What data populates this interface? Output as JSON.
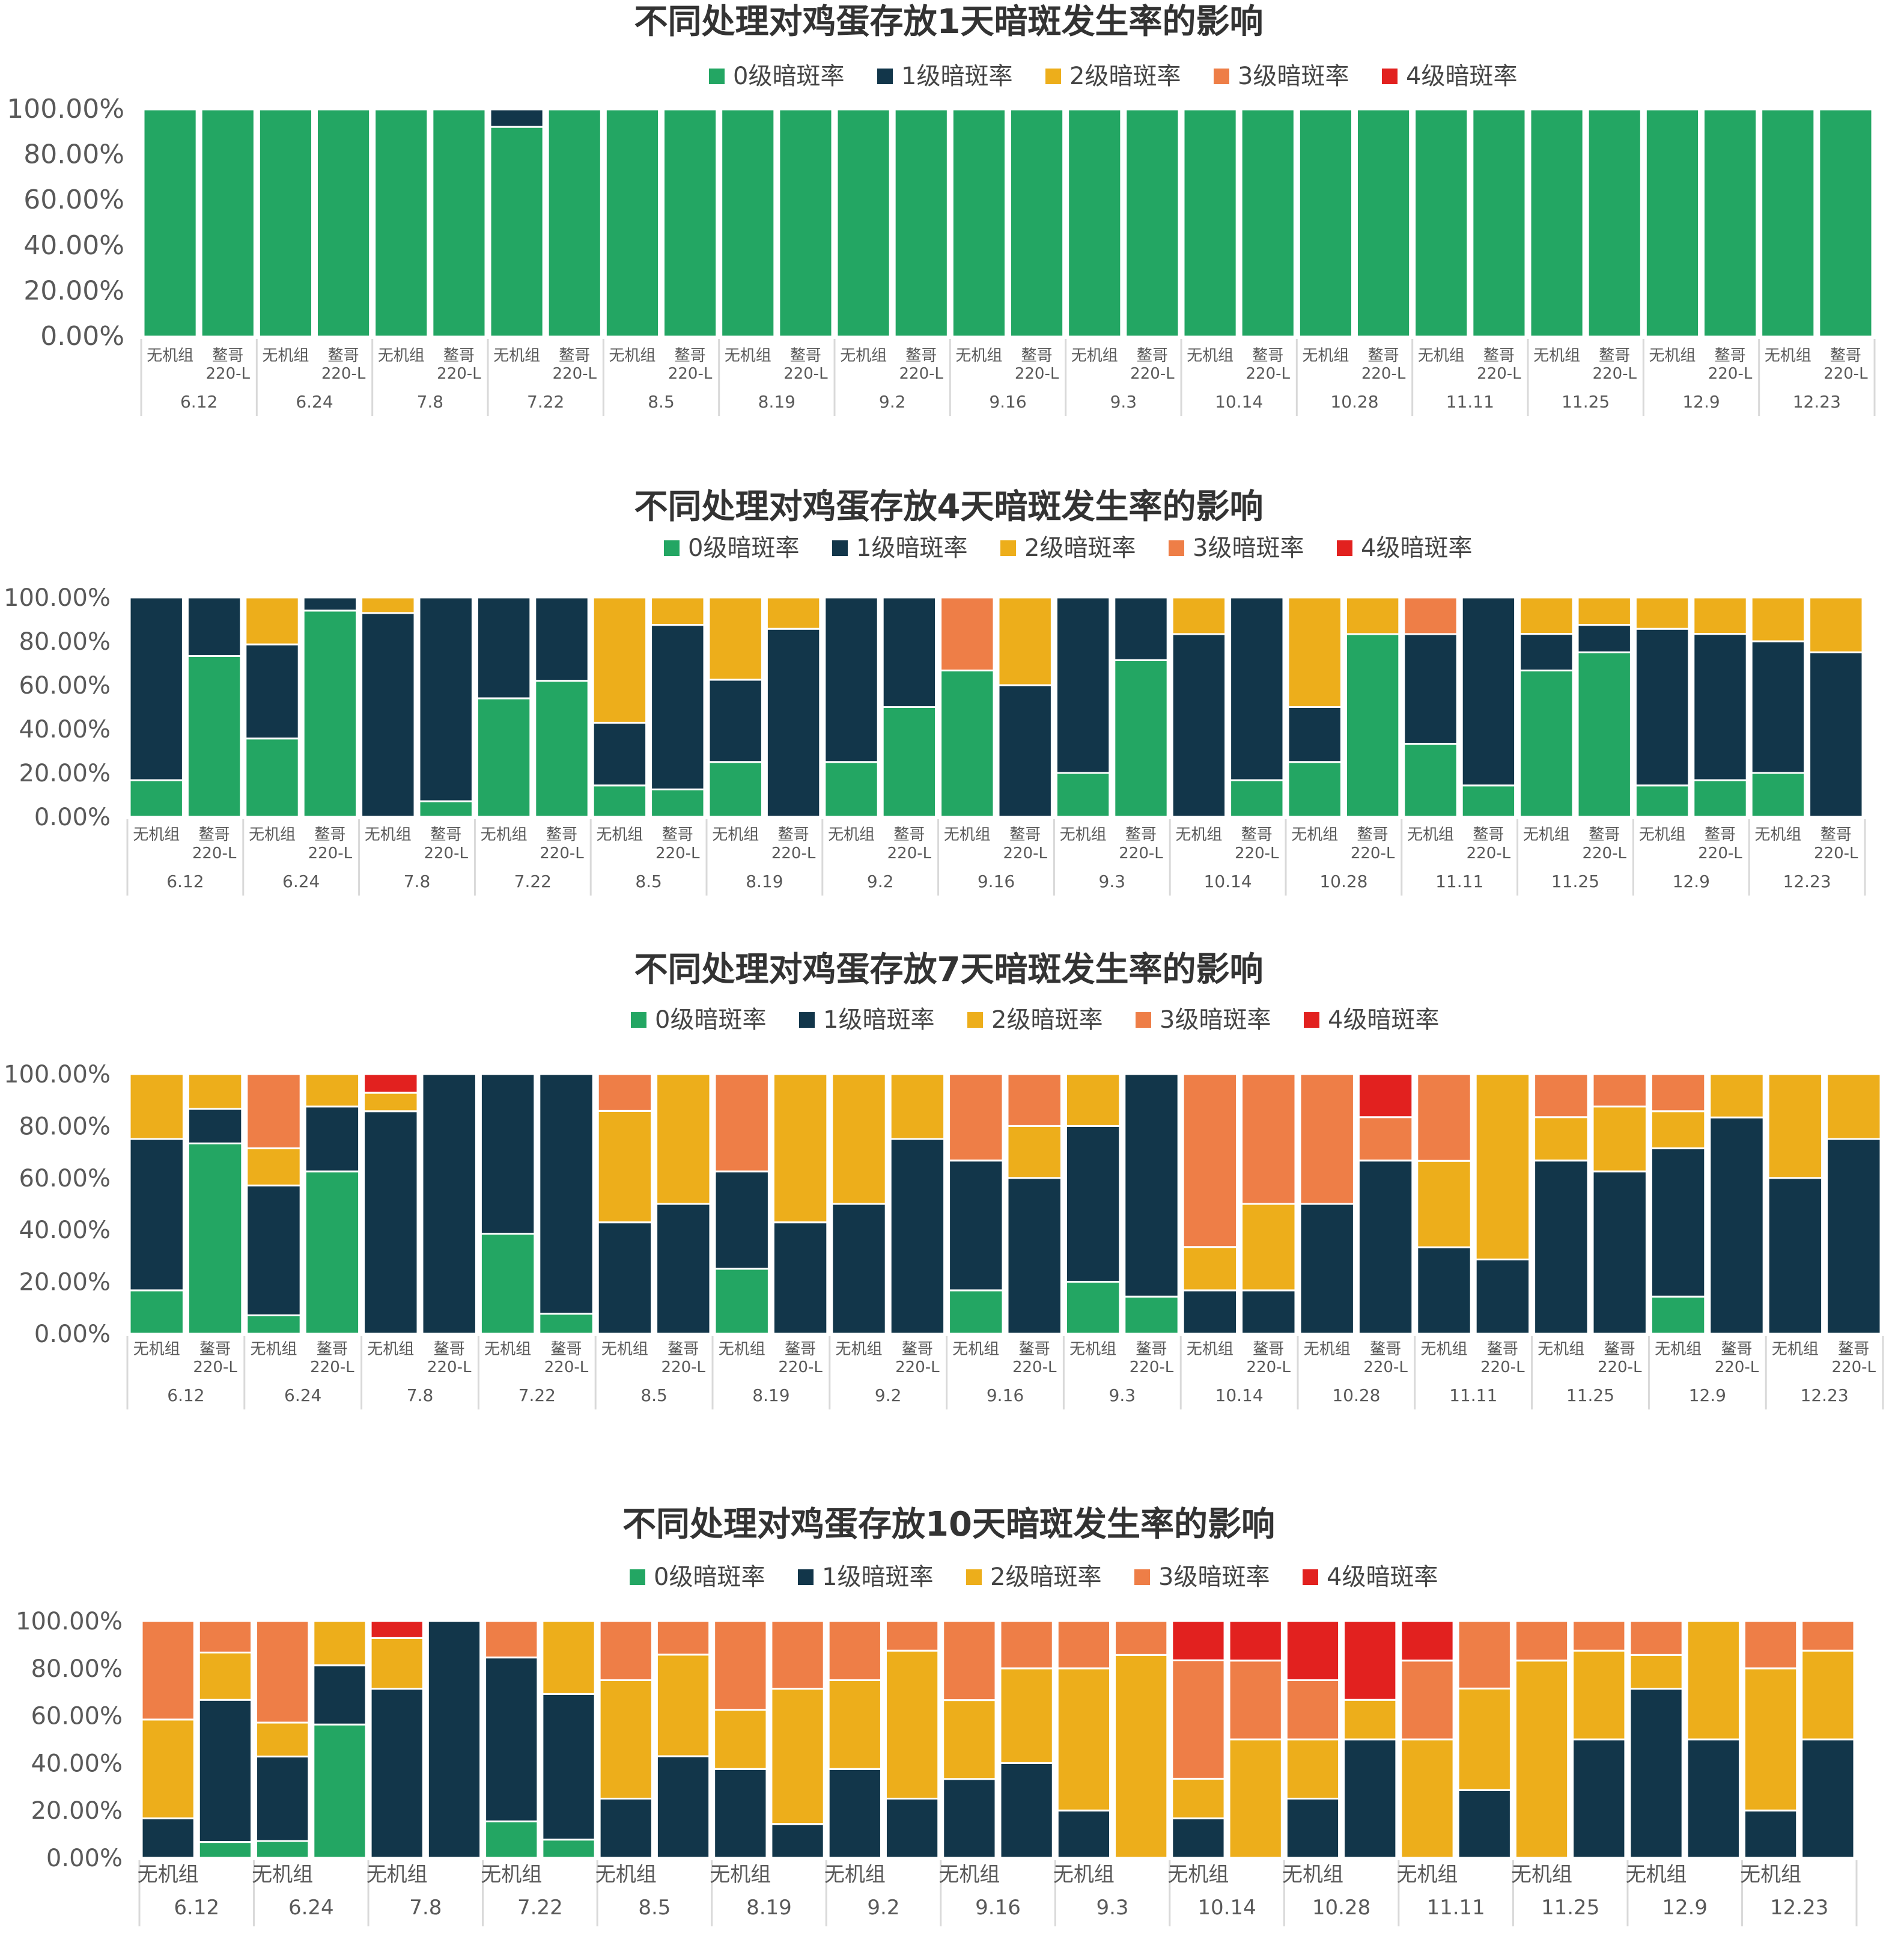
{
  "colors": {
    "level0": "#23A663",
    "level1": "#12364A",
    "level2": "#EDAE1B",
    "level3": "#EE7E47",
    "level4": "#E2211F",
    "grid_line": "#D9D9D9",
    "text": "#595959"
  },
  "legend": [
    "0级暗斑率",
    "1级暗斑率",
    "2级暗斑率",
    "3级暗斑率",
    "4级暗斑率"
  ],
  "dates": [
    "6.12",
    "6.24",
    "7.8",
    "7.22",
    "8.5",
    "8.19",
    "9.2",
    "9.16",
    "9.3",
    "10.14",
    "10.28",
    "11.11",
    "11.25",
    "12.9",
    "12.23"
  ],
  "groups": [
    "无机组",
    "鳌哥\n220-L"
  ],
  "chart_data": [
    {
      "type": "bar",
      "stacked": true,
      "title": "不同处理对鸡蛋存放1天暗斑发生率的影响",
      "ylim": [
        0,
        100
      ],
      "y_ticks": [
        "0.00%",
        "20.00%",
        "40.00%",
        "60.00%",
        "80.00%",
        "100.00%"
      ],
      "show_second_group_label": true,
      "bars": [
        [
          100,
          0,
          0,
          0,
          0
        ],
        [
          100,
          0,
          0,
          0,
          0
        ],
        [
          100,
          0,
          0,
          0,
          0
        ],
        [
          100,
          0,
          0,
          0,
          0
        ],
        [
          100,
          0,
          0,
          0,
          0
        ],
        [
          100,
          0,
          0,
          0,
          0
        ],
        [
          92.3,
          7.7,
          0,
          0,
          0
        ],
        [
          100,
          0,
          0,
          0,
          0
        ],
        [
          100,
          0,
          0,
          0,
          0
        ],
        [
          100,
          0,
          0,
          0,
          0
        ],
        [
          100,
          0,
          0,
          0,
          0
        ],
        [
          100,
          0,
          0,
          0,
          0
        ],
        [
          100,
          0,
          0,
          0,
          0
        ],
        [
          100,
          0,
          0,
          0,
          0
        ],
        [
          100,
          0,
          0,
          0,
          0
        ],
        [
          100,
          0,
          0,
          0,
          0
        ],
        [
          100,
          0,
          0,
          0,
          0
        ],
        [
          100,
          0,
          0,
          0,
          0
        ],
        [
          100,
          0,
          0,
          0,
          0
        ],
        [
          100,
          0,
          0,
          0,
          0
        ],
        [
          100,
          0,
          0,
          0,
          0
        ],
        [
          100,
          0,
          0,
          0,
          0
        ],
        [
          100,
          0,
          0,
          0,
          0
        ],
        [
          100,
          0,
          0,
          0,
          0
        ],
        [
          100,
          0,
          0,
          0,
          0
        ],
        [
          100,
          0,
          0,
          0,
          0
        ],
        [
          100,
          0,
          0,
          0,
          0
        ],
        [
          100,
          0,
          0,
          0,
          0
        ],
        [
          100,
          0,
          0,
          0,
          0
        ],
        [
          100,
          0,
          0,
          0,
          0
        ]
      ]
    },
    {
      "type": "bar",
      "stacked": true,
      "title": "不同处理对鸡蛋存放4天暗斑发生率的影响",
      "ylim": [
        0,
        100
      ],
      "y_ticks": [
        "0.00%",
        "20.00%",
        "40.00%",
        "60.00%",
        "80.00%",
        "100.00%"
      ],
      "show_second_group_label": true,
      "bars": [
        [
          16.7,
          83.3,
          0,
          0,
          0
        ],
        [
          73.3,
          26.7,
          0,
          0,
          0
        ],
        [
          35.7,
          42.9,
          21.4,
          0,
          0
        ],
        [
          94,
          6,
          0,
          0,
          0
        ],
        [
          0,
          92.9,
          7.1,
          0,
          0
        ],
        [
          7.1,
          92.9,
          0,
          0,
          0
        ],
        [
          54,
          46,
          0,
          0,
          0
        ],
        [
          62,
          38,
          0,
          0,
          0
        ],
        [
          14.3,
          28.6,
          57.1,
          0,
          0
        ],
        [
          12.5,
          75,
          12.5,
          0,
          0
        ],
        [
          25,
          37.5,
          37.5,
          0,
          0
        ],
        [
          0,
          85.7,
          14.3,
          0,
          0
        ],
        [
          25,
          75,
          0,
          0,
          0
        ],
        [
          50,
          50,
          0,
          0,
          0
        ],
        [
          66.7,
          0,
          0,
          33.3,
          0
        ],
        [
          0,
          60,
          40,
          0,
          0
        ],
        [
          20,
          80,
          0,
          0,
          0
        ],
        [
          71.4,
          28.6,
          0,
          0,
          0
        ],
        [
          0,
          83.3,
          16.7,
          0,
          0
        ],
        [
          16.7,
          83.3,
          0,
          0,
          0
        ],
        [
          25,
          25,
          50,
          0,
          0
        ],
        [
          83.3,
          0,
          16.7,
          0,
          0
        ],
        [
          33.3,
          50,
          0,
          16.7,
          0
        ],
        [
          14.3,
          85.7,
          0,
          0,
          0
        ],
        [
          66.7,
          16.7,
          16.6,
          0,
          0
        ],
        [
          75,
          12.5,
          12.5,
          0,
          0
        ],
        [
          14.3,
          71.4,
          14.3,
          0,
          0
        ],
        [
          16.7,
          66.7,
          16.6,
          0,
          0
        ],
        [
          20,
          60,
          20,
          0,
          0
        ],
        [
          0,
          75,
          25,
          0,
          0
        ]
      ]
    },
    {
      "type": "bar",
      "stacked": true,
      "title": "不同处理对鸡蛋存放7天暗斑发生率的影响",
      "ylim": [
        0,
        100
      ],
      "y_ticks": [
        "0.00%",
        "20.00%",
        "40.00%",
        "60.00%",
        "80.00%",
        "100.00%"
      ],
      "show_second_group_label": true,
      "bars": [
        [
          16.7,
          58.3,
          25,
          0,
          0
        ],
        [
          73.3,
          13.3,
          13.4,
          0,
          0
        ],
        [
          7.1,
          50,
          14.3,
          28.6,
          0
        ],
        [
          62.5,
          25,
          12.5,
          0,
          0
        ],
        [
          0,
          85.7,
          7.1,
          0,
          7.2
        ],
        [
          0,
          100,
          0,
          0,
          0
        ],
        [
          38.5,
          61.5,
          0,
          0,
          0
        ],
        [
          7.7,
          92.3,
          0,
          0,
          0
        ],
        [
          0,
          42.9,
          42.9,
          14.2,
          0
        ],
        [
          0,
          50,
          50,
          0,
          0
        ],
        [
          25,
          37.5,
          0,
          37.5,
          0
        ],
        [
          0,
          42.9,
          57.1,
          0,
          0
        ],
        [
          0,
          50,
          50,
          0,
          0
        ],
        [
          0,
          75,
          25,
          0,
          0
        ],
        [
          16.7,
          50,
          0,
          33.3,
          0
        ],
        [
          0,
          60,
          20,
          20,
          0
        ],
        [
          20,
          60,
          20,
          0,
          0
        ],
        [
          14.3,
          85.7,
          0,
          0,
          0
        ],
        [
          0,
          16.7,
          16.7,
          66.6,
          0
        ],
        [
          0,
          16.7,
          33.3,
          50,
          0
        ],
        [
          0,
          50,
          0,
          50,
          0
        ],
        [
          0,
          66.7,
          0,
          16.7,
          16.6
        ],
        [
          0,
          33.3,
          33.3,
          33.4,
          0
        ],
        [
          0,
          28.6,
          71.4,
          0,
          0
        ],
        [
          0,
          66.7,
          16.7,
          16.6,
          0
        ],
        [
          0,
          62.5,
          25,
          12.5,
          0
        ],
        [
          14.3,
          57.1,
          14.3,
          14.3,
          0
        ],
        [
          0,
          83.3,
          16.7,
          0,
          0
        ],
        [
          0,
          60,
          40,
          0,
          0
        ],
        [
          0,
          75,
          25,
          0,
          0
        ]
      ]
    },
    {
      "type": "bar",
      "stacked": true,
      "title": "不同处理对鸡蛋存放10天暗斑发生率的影响",
      "ylim": [
        0,
        100
      ],
      "y_ticks": [
        "0.00%",
        "20.00%",
        "40.00%",
        "60.00%",
        "80.00%",
        "100.00%"
      ],
      "show_second_group_label": false,
      "bars": [
        [
          0,
          16.7,
          41.7,
          41.6,
          0
        ],
        [
          6.7,
          60,
          20,
          13.3,
          0
        ],
        [
          7.1,
          35.7,
          14.3,
          42.9,
          0
        ],
        [
          56.3,
          25,
          18.7,
          0,
          0
        ],
        [
          0,
          71.4,
          21.4,
          0,
          7.2
        ],
        [
          0,
          100,
          0,
          0,
          0
        ],
        [
          15.4,
          69.2,
          0,
          15.4,
          0
        ],
        [
          7.7,
          61.5,
          30.8,
          0,
          0
        ],
        [
          0,
          25,
          50,
          25,
          0
        ],
        [
          0,
          42.9,
          42.9,
          14.2,
          0
        ],
        [
          0,
          37.5,
          25,
          37.5,
          0
        ],
        [
          0,
          14.3,
          57.1,
          28.6,
          0
        ],
        [
          0,
          37.5,
          37.5,
          25,
          0
        ],
        [
          0,
          25,
          62.5,
          12.5,
          0
        ],
        [
          0,
          33.3,
          33.3,
          33.4,
          0
        ],
        [
          0,
          40,
          40,
          20,
          0
        ],
        [
          0,
          20,
          60,
          20,
          0
        ],
        [
          0,
          0,
          85.7,
          14.3,
          0
        ],
        [
          0,
          16.7,
          16.7,
          50,
          16.6
        ],
        [
          0,
          0,
          50,
          33.3,
          16.7
        ],
        [
          0,
          25,
          25,
          25,
          25
        ],
        [
          0,
          50,
          16.7,
          0,
          33.3
        ],
        [
          0,
          0,
          50,
          33.3,
          16.7
        ],
        [
          0,
          28.6,
          42.9,
          28.5,
          0
        ],
        [
          0,
          0,
          83.3,
          16.7,
          0
        ],
        [
          0,
          50,
          37.5,
          12.5,
          0
        ],
        [
          0,
          71.4,
          14.3,
          14.3,
          0
        ],
        [
          0,
          50,
          50,
          0,
          0
        ],
        [
          0,
          20,
          60,
          20,
          0
        ],
        [
          0,
          50,
          37.5,
          12.5,
          0
        ]
      ]
    }
  ]
}
